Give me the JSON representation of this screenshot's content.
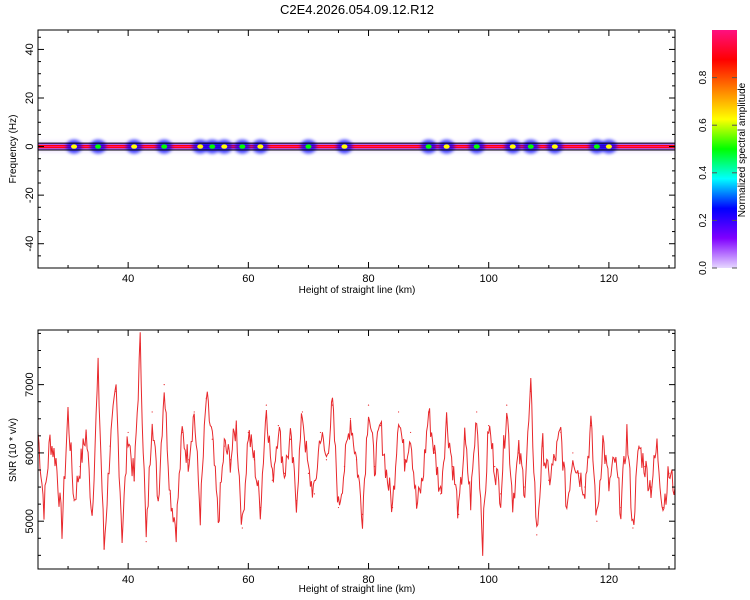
{
  "chart_data": [
    {
      "type": "heatmap",
      "title": "C2E4.2026.054.09.12.R12",
      "xlabel": "Height of straight line (km)",
      "ylabel": "Frequency (Hz)",
      "xlim": [
        25,
        131
      ],
      "ylim": [
        -50,
        48
      ],
      "xticks": [
        40,
        60,
        80,
        100,
        120
      ],
      "yticks": [
        -40,
        -20,
        0,
        20,
        40
      ],
      "band_center_hz": 0,
      "band_halfwidth_hz": 1.5,
      "bright_spots_km": [
        31,
        35,
        41,
        46,
        52,
        54,
        56,
        59,
        62,
        70,
        76,
        90,
        93,
        98,
        104,
        107,
        111,
        118,
        120
      ],
      "colorbar": {
        "label": "Normalized spectral amplitude",
        "range": [
          0,
          1
        ],
        "ticks": [
          0.0,
          0.2,
          0.4,
          0.6,
          0.8
        ],
        "colors": [
          "#e6d8ff",
          "#8000ff",
          "#0000ff",
          "#00ffff",
          "#00ff00",
          "#ffff00",
          "#ff8000",
          "#ff0000",
          "#ff1080"
        ]
      },
      "line_color": "#000000"
    },
    {
      "type": "line",
      "xlabel": "Height of straight line (km)",
      "ylabel": "SNR (10 * v/v)",
      "xlim": [
        25,
        131
      ],
      "ylim": [
        4300,
        7800
      ],
      "xticks": [
        40,
        60,
        80,
        100,
        120
      ],
      "yticks": [
        5000,
        6000,
        7000
      ],
      "color": "#e8282c",
      "x": [
        25,
        26,
        27,
        28,
        29,
        30,
        31,
        32,
        33,
        34,
        35,
        36,
        37,
        38,
        39,
        40,
        41,
        42,
        43,
        44,
        45,
        46,
        47,
        48,
        49,
        50,
        51,
        52,
        53,
        54,
        55,
        56,
        57,
        58,
        59,
        60,
        61,
        62,
        63,
        64,
        65,
        66,
        67,
        68,
        69,
        70,
        71,
        72,
        73,
        74,
        75,
        76,
        77,
        78,
        79,
        80,
        81,
        82,
        83,
        84,
        85,
        86,
        87,
        88,
        89,
        90,
        91,
        92,
        93,
        94,
        95,
        96,
        97,
        98,
        99,
        100,
        101,
        102,
        103,
        104,
        105,
        106,
        107,
        108,
        109,
        110,
        111,
        112,
        113,
        114,
        115,
        116,
        117,
        118,
        119,
        120,
        121,
        122,
        123,
        124,
        125,
        126,
        127,
        128,
        129,
        130,
        131
      ],
      "values": [
        6300,
        5200,
        6200,
        5900,
        4900,
        6600,
        5300,
        5800,
        6300,
        5100,
        7200,
        4600,
        6100,
        6900,
        4800,
        6300,
        5600,
        7600,
        4700,
        6600,
        5300,
        7000,
        5400,
        4900,
        6300,
        5900,
        6600,
        5100,
        6800,
        6200,
        5000,
        6100,
        5900,
        6400,
        4900,
        6300,
        5900,
        5200,
        6700,
        5600,
        6400,
        5700,
        6200,
        5300,
        6600,
        5700,
        5400,
        6300,
        5900,
        6700,
        5200,
        5800,
        6500,
        5900,
        5100,
        6700,
        5800,
        6400,
        5700,
        5200,
        6600,
        5900,
        6300,
        5200,
        5600,
        6600,
        6000,
        5400,
        6500,
        5800,
        5100,
        6200,
        5300,
        6600,
        4700,
        6400,
        5800,
        5400,
        6700,
        5300,
        6000,
        5500,
        6900,
        4800,
        6100,
        5600,
        5900,
        6300,
        5200,
        6000,
        5700,
        5500,
        6400,
        5000,
        6200,
        5500,
        5900,
        5200,
        6300,
        4900,
        6100,
        5800,
        5500,
        6100,
        5200,
        5700,
        5500
      ]
    }
  ]
}
